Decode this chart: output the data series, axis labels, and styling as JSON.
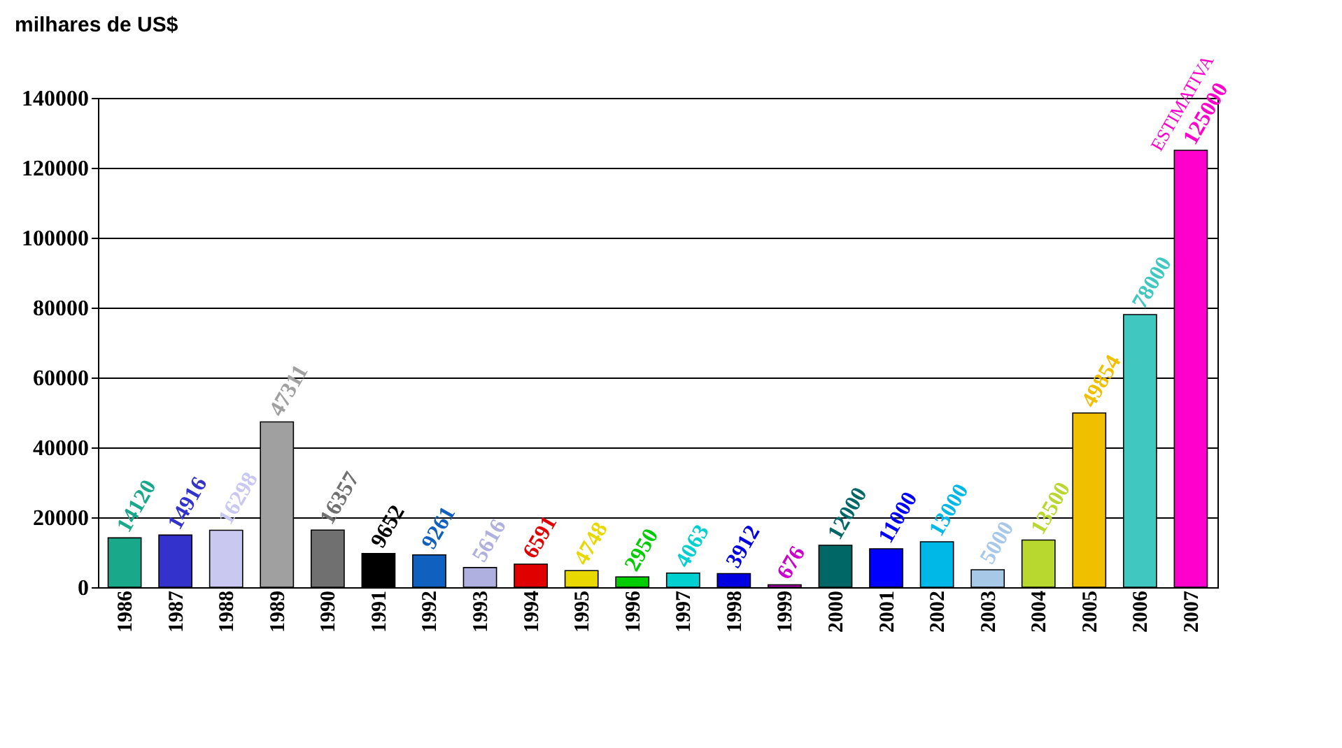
{
  "chart_data": {
    "type": "bar",
    "ylabel": "milhares de US$",
    "categories": [
      "1986",
      "1987",
      "1988",
      "1989",
      "1990",
      "1991",
      "1992",
      "1993",
      "1994",
      "1995",
      "1996",
      "1997",
      "1998",
      "1999",
      "2000",
      "2001",
      "2002",
      "2003",
      "2004",
      "2005",
      "2006",
      "2007"
    ],
    "values": [
      14120,
      14916,
      16298,
      47311,
      16357,
      9652,
      9261,
      5616,
      6591,
      4748,
      2950,
      4063,
      3912,
      676,
      12000,
      11000,
      13000,
      5000,
      13500,
      49854,
      78000,
      125000
    ],
    "colors": [
      "#1aa88a",
      "#3333cc",
      "#c8c8f0",
      "#a0a0a0",
      "#707070",
      "#000000",
      "#1060c0",
      "#b0b0e0",
      "#e00000",
      "#e8d800",
      "#00cc00",
      "#00d0d0",
      "#0000e0",
      "#cc00cc",
      "#006666",
      "#0000ff",
      "#00b8e8",
      "#a8c8e8",
      "#b8d830",
      "#f0c000",
      "#40c8c0",
      "#ff00cc"
    ],
    "data_labels": true,
    "annotations": [
      {
        "text": "ESTIMATIVA",
        "x": "2007",
        "y": 125000
      }
    ],
    "ylim": [
      0,
      140000
    ],
    "yticks": [
      0,
      20000,
      40000,
      60000,
      80000,
      100000,
      120000,
      140000
    ],
    "grid": "y"
  }
}
